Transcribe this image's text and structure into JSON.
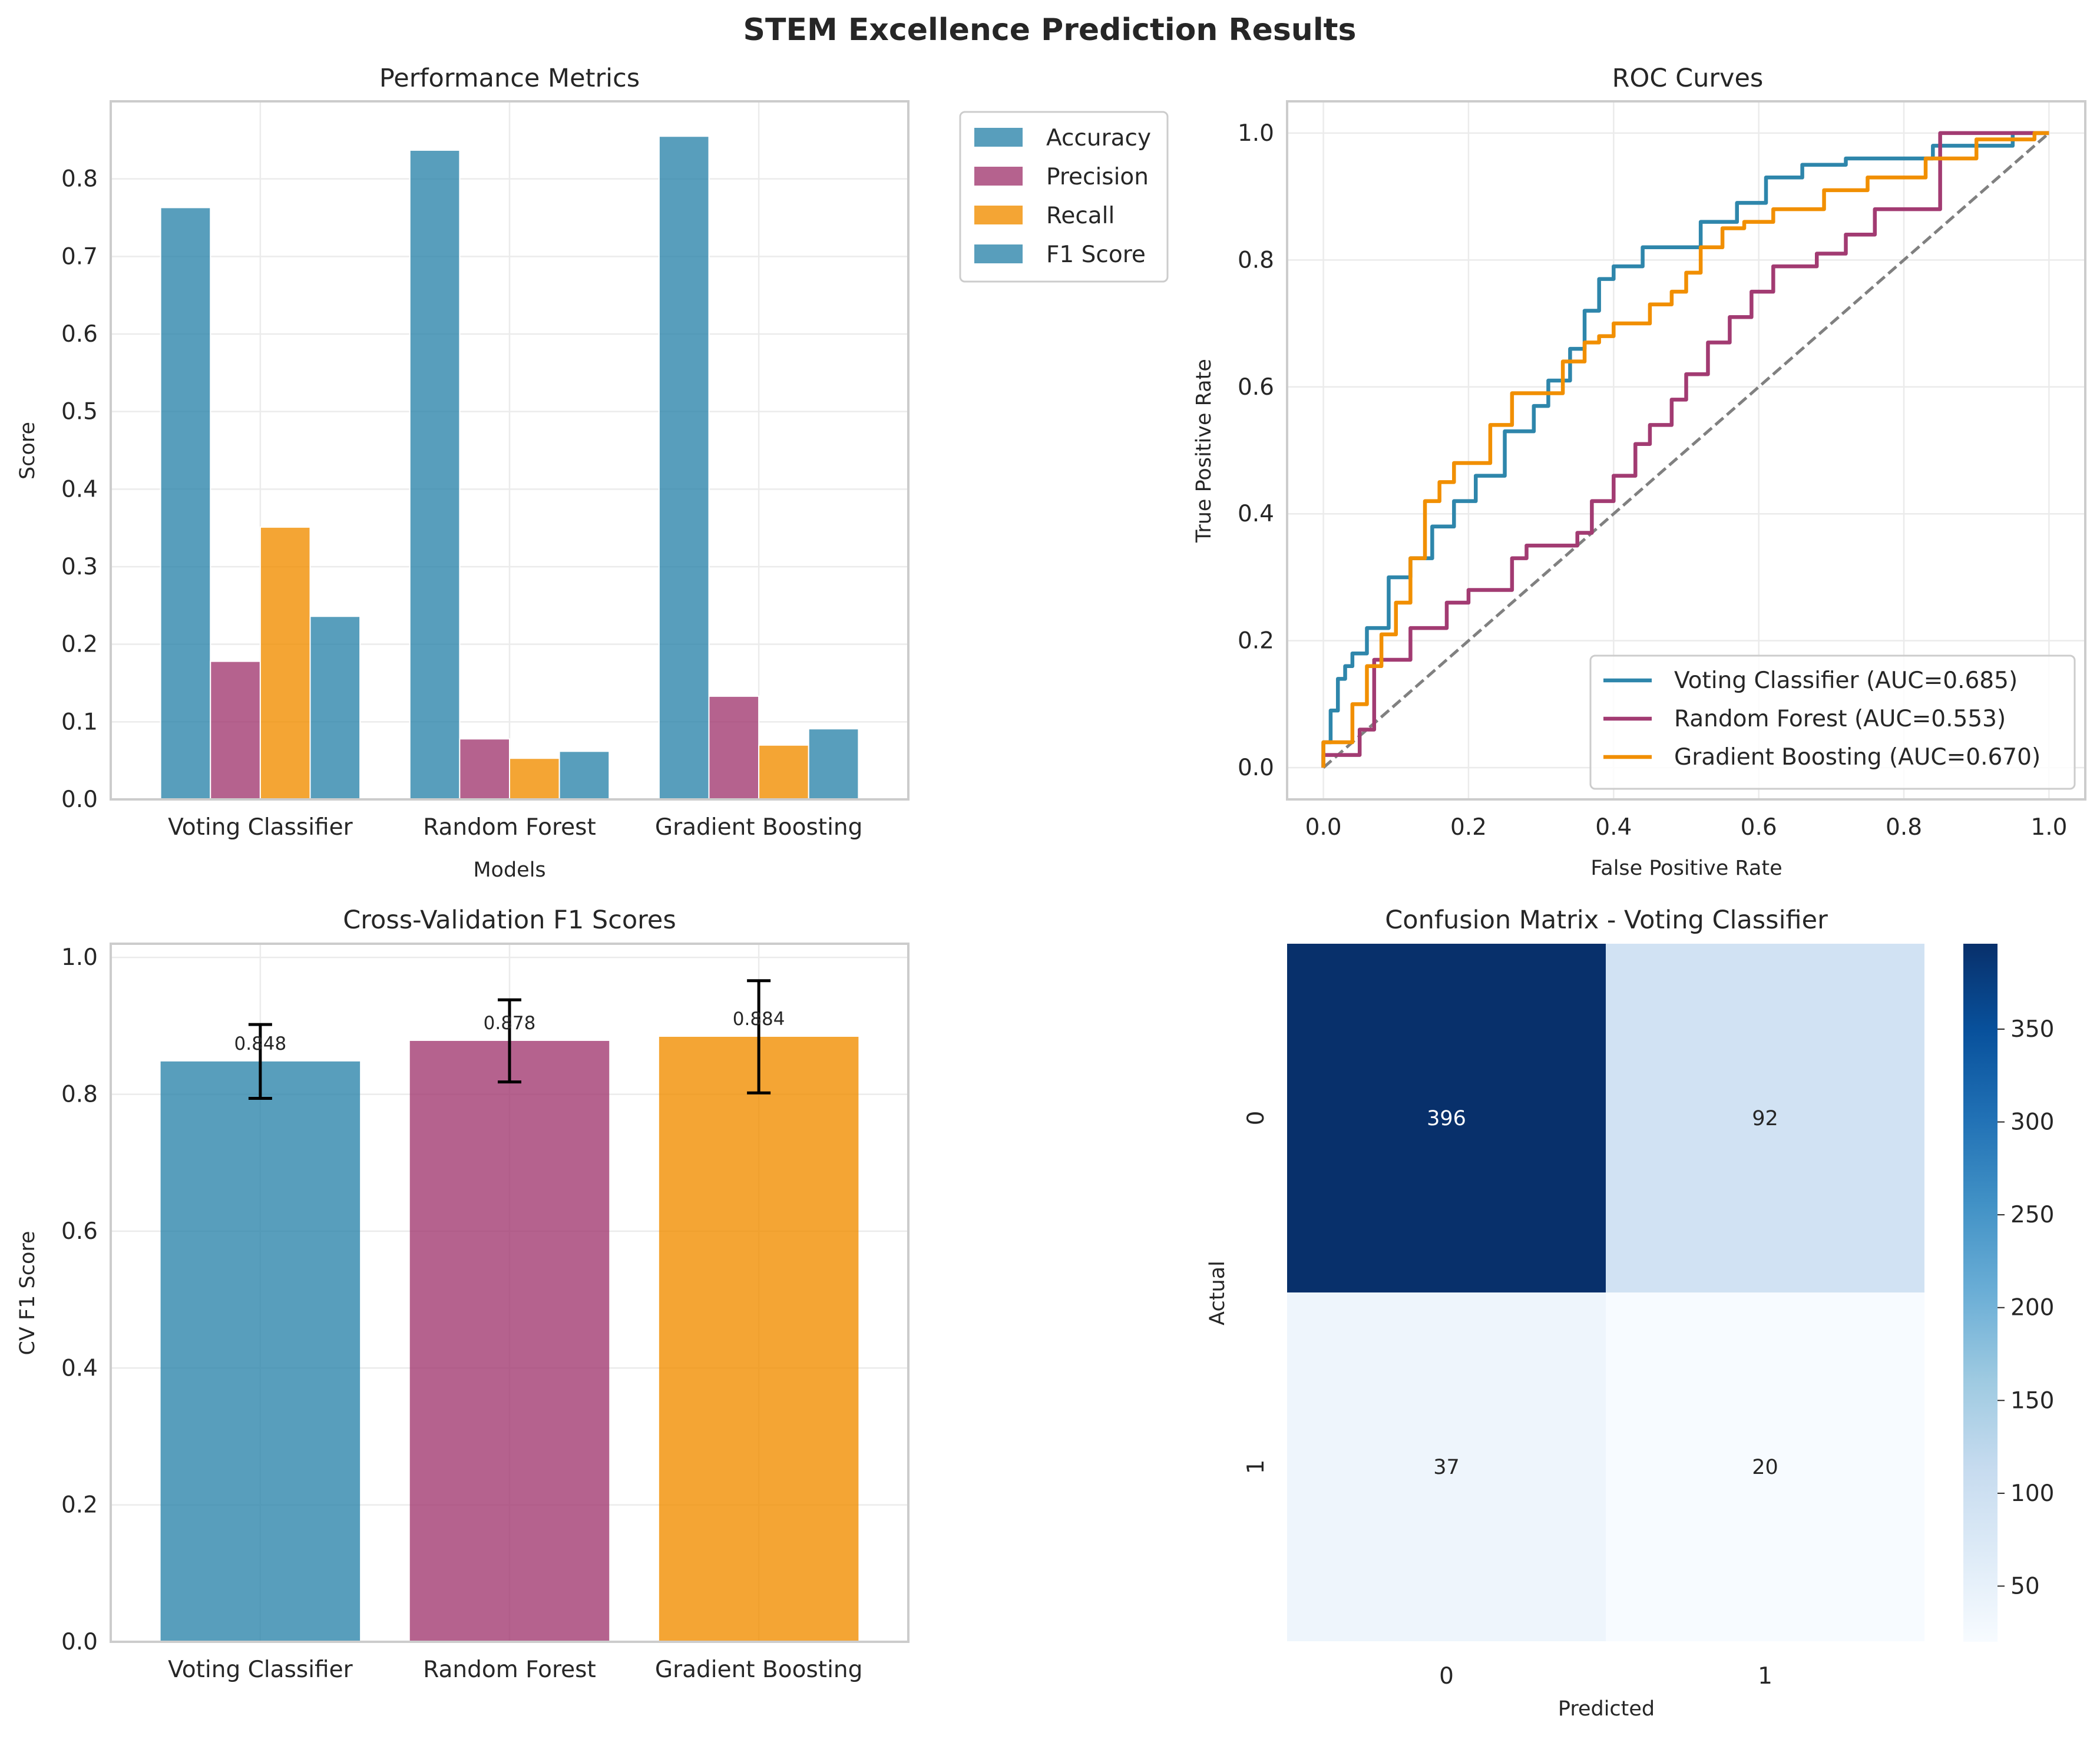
{
  "title": "STEM Excellence Prediction Results",
  "colors": {
    "blue": "#2e86ab",
    "purple": "#a23b72",
    "orange": "#f18f01",
    "diag": "#808080"
  },
  "chart_data": [
    {
      "type": "bar",
      "title": "Performance Metrics",
      "xlabel": "Models",
      "ylabel": "Score",
      "categories": [
        "Voting Classifier",
        "Random Forest",
        "Gradient Boosting"
      ],
      "series": [
        {
          "name": "Accuracy",
          "color": "#2e86ab",
          "values": [
            0.763,
            0.837,
            0.855
          ]
        },
        {
          "name": "Precision",
          "color": "#a23b72",
          "values": [
            0.178,
            0.078,
            0.133
          ]
        },
        {
          "name": "Recall",
          "color": "#f18f01",
          "values": [
            0.351,
            0.053,
            0.07
          ]
        },
        {
          "name": "F1 Score",
          "color": "#2e86ab",
          "values": [
            0.236,
            0.062,
            0.091
          ]
        }
      ],
      "ylim": [
        0,
        0.9
      ],
      "yticks": [
        0.0,
        0.1,
        0.2,
        0.3,
        0.4,
        0.5,
        0.6,
        0.7,
        0.8
      ],
      "ytick_labels": [
        "0.0",
        "0.1",
        "0.2",
        "0.3",
        "0.4",
        "0.5",
        "0.6",
        "0.7",
        "0.8"
      ],
      "grid": true,
      "legend": "outside upper right"
    },
    {
      "type": "line",
      "title": "ROC Curves",
      "xlabel": "False Positive Rate",
      "ylabel": "True Positive Rate",
      "xlim": [
        -0.05,
        1.05
      ],
      "ylim": [
        -0.05,
        1.05
      ],
      "xticks": [
        0.0,
        0.2,
        0.4,
        0.6,
        0.8,
        1.0
      ],
      "xtick_labels": [
        "0.0",
        "0.2",
        "0.4",
        "0.6",
        "0.8",
        "1.0"
      ],
      "yticks": [
        0.0,
        0.2,
        0.4,
        0.6,
        0.8,
        1.0
      ],
      "ytick_labels": [
        "0.0",
        "0.2",
        "0.4",
        "0.6",
        "0.8",
        "1.0"
      ],
      "grid": true,
      "legend": "lower right",
      "series": [
        {
          "name": "Voting Classifier (AUC=0.685)",
          "color": "#2e86ab",
          "x": [
            0,
            0.01,
            0.02,
            0.03,
            0.04,
            0.06,
            0.09,
            0.12,
            0.15,
            0.18,
            0.21,
            0.25,
            0.29,
            0.31,
            0.34,
            0.36,
            0.38,
            0.4,
            0.44,
            0.52,
            0.57,
            0.61,
            0.66,
            0.72,
            0.84,
            0.95,
            1.0
          ],
          "y": [
            0,
            0.04,
            0.09,
            0.14,
            0.16,
            0.18,
            0.22,
            0.3,
            0.33,
            0.38,
            0.42,
            0.46,
            0.53,
            0.57,
            0.61,
            0.66,
            0.72,
            0.77,
            0.79,
            0.82,
            0.86,
            0.89,
            0.93,
            0.95,
            0.96,
            0.98,
            1.0
          ]
        },
        {
          "name": "Random Forest (AUC=0.553)",
          "color": "#a23b72",
          "x": [
            0,
            0.05,
            0.07,
            0.12,
            0.17,
            0.2,
            0.26,
            0.28,
            0.3,
            0.35,
            0.37,
            0.4,
            0.43,
            0.45,
            0.48,
            0.5,
            0.53,
            0.56,
            0.59,
            0.62,
            0.68,
            0.72,
            0.76,
            0.85,
            1.0
          ],
          "y": [
            0,
            0.02,
            0.06,
            0.17,
            0.22,
            0.26,
            0.28,
            0.33,
            0.35,
            0.35,
            0.37,
            0.42,
            0.46,
            0.51,
            0.54,
            0.58,
            0.62,
            0.67,
            0.71,
            0.75,
            0.79,
            0.81,
            0.84,
            0.88,
            1.0
          ]
        },
        {
          "name": "Gradient Boosting (AUC=0.670)",
          "color": "#f18f01",
          "x": [
            0,
            0.04,
            0.06,
            0.08,
            0.1,
            0.12,
            0.14,
            0.16,
            0.18,
            0.23,
            0.26,
            0.33,
            0.36,
            0.38,
            0.4,
            0.45,
            0.48,
            0.5,
            0.52,
            0.55,
            0.58,
            0.62,
            0.69,
            0.75,
            0.83,
            0.9,
            0.98,
            1.0
          ],
          "y": [
            0,
            0.04,
            0.1,
            0.16,
            0.21,
            0.26,
            0.33,
            0.42,
            0.45,
            0.48,
            0.54,
            0.59,
            0.64,
            0.67,
            0.68,
            0.7,
            0.73,
            0.75,
            0.78,
            0.82,
            0.85,
            0.86,
            0.88,
            0.91,
            0.93,
            0.96,
            0.99,
            1.0
          ]
        }
      ],
      "diagonal": {
        "x": [
          0,
          1
        ],
        "y": [
          0,
          1
        ],
        "style": "dashed"
      }
    },
    {
      "type": "bar",
      "title": "Cross-Validation F1 Scores",
      "xlabel": "",
      "ylabel": "CV F1 Score",
      "categories": [
        "Voting Classifier",
        "Random Forest",
        "Gradient Boosting"
      ],
      "values": [
        0.848,
        0.878,
        0.884
      ],
      "value_labels": [
        "0.848",
        "0.878",
        "0.884"
      ],
      "errors": [
        0.054,
        0.06,
        0.082
      ],
      "colors": [
        "#2e86ab",
        "#a23b72",
        "#f18f01"
      ],
      "ylim": [
        0,
        1.02
      ],
      "yticks": [
        0.0,
        0.2,
        0.4,
        0.6,
        0.8,
        1.0
      ],
      "ytick_labels": [
        "0.0",
        "0.2",
        "0.4",
        "0.6",
        "0.8",
        "1.0"
      ],
      "grid": true
    },
    {
      "type": "heatmap",
      "title": "Confusion Matrix - Voting Classifier",
      "xlabel": "Predicted",
      "ylabel": "Actual",
      "xtick_labels": [
        "0",
        "1"
      ],
      "ytick_labels": [
        "0",
        "1"
      ],
      "values": [
        [
          396,
          92
        ],
        [
          37,
          20
        ]
      ],
      "value_labels": [
        [
          "396",
          "92"
        ],
        [
          "37",
          "20"
        ]
      ],
      "colormap": "Blues",
      "colorbar": {
        "vmin": 20,
        "vmax": 396,
        "ticks": [
          50,
          100,
          150,
          200,
          250,
          300,
          350
        ],
        "tick_labels": [
          "50",
          "100",
          "150",
          "200",
          "250",
          "300",
          "350"
        ]
      }
    }
  ]
}
